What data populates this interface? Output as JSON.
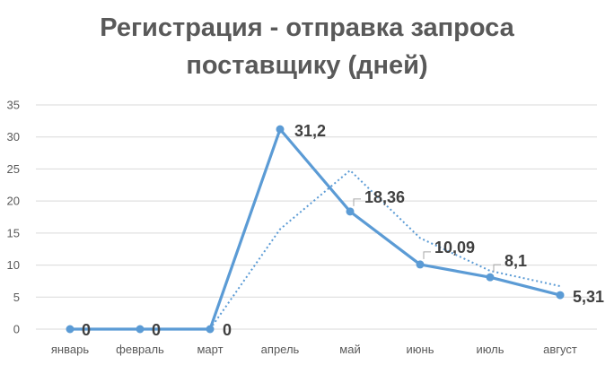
{
  "chart_data": {
    "type": "line",
    "title_lines": [
      "Регистрация - отправка запроса",
      "поставщику (дней)"
    ],
    "categories": [
      "январь",
      "февраль",
      "март",
      "апрель",
      "май",
      "июнь",
      "июль",
      "август"
    ],
    "series": [
      {
        "values": [
          0,
          0,
          0,
          31.2,
          18.36,
          10.09,
          8.1,
          5.31
        ],
        "data_labels": [
          "0",
          "0",
          "0",
          "31,2",
          "18,36",
          "10,09",
          "8,1",
          "5,31"
        ],
        "color": "#5B9BD5",
        "markers": true
      }
    ],
    "trendline": {
      "type": "moving-average",
      "values": [
        null,
        null,
        0,
        15.6,
        24.78,
        14.22,
        9.1,
        6.71
      ],
      "color": "#5B9BD5",
      "style": "dotted"
    },
    "yticks": [
      "0",
      "5",
      "10",
      "15",
      "20",
      "25",
      "30",
      "35"
    ],
    "ylim": [
      0,
      35
    ],
    "grid": true,
    "legend": "none"
  }
}
